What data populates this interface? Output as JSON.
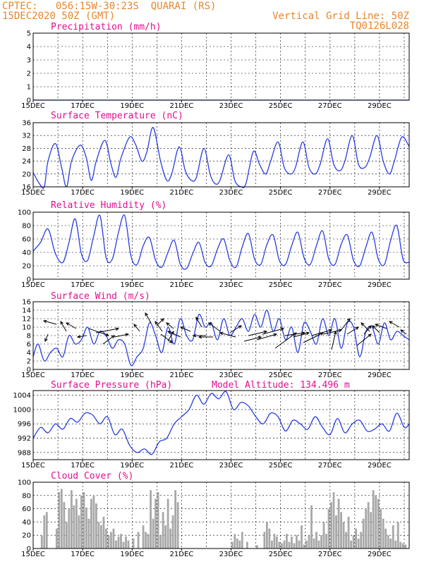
{
  "header": {
    "left_line1": "CPTEC:   056:15W-30:23S  QUARAI (RS)",
    "left_line2": "15DEC2020 50Z (GMT)",
    "right_line1": "Vertical Grid Line: 50Z",
    "right_line2": "TQ0126L028"
  },
  "colors": {
    "header": "#e8862a",
    "titles": "#e0108f",
    "series": "#2a3ee0",
    "bars": "#a8a8a8",
    "wind_arrows": "#000000"
  },
  "chart_data": [
    {
      "type": "line",
      "title": "Precipitation (mm/h)",
      "ylim": [
        0,
        5
      ],
      "yticks": [
        0,
        1,
        2,
        3,
        4,
        5
      ],
      "xticks": [
        "15DEC",
        "17DEC",
        "19DEC",
        "21DEC",
        "23DEC",
        "25DEC",
        "27DEC",
        "29DEC"
      ],
      "x_day_range": [
        15.0,
        30.2
      ],
      "x": [
        15.0,
        30.2
      ],
      "y": [
        0,
        0
      ]
    },
    {
      "type": "line",
      "title": "Surface Temperature (nC)",
      "ylim": [
        16,
        36
      ],
      "yticks": [
        16,
        20,
        24,
        28,
        32,
        36
      ],
      "xticks": [
        "15DEC",
        "17DEC",
        "19DEC",
        "21DEC",
        "23DEC",
        "25DEC",
        "27DEC",
        "29DEC"
      ],
      "x_day_range": [
        15.0,
        30.2
      ],
      "x": [
        15.0,
        15.25,
        15.45,
        15.6,
        15.9,
        16.15,
        16.35,
        16.55,
        16.9,
        17.15,
        17.35,
        17.55,
        17.9,
        18.15,
        18.35,
        18.55,
        18.9,
        19.15,
        19.4,
        19.6,
        19.85,
        20.15,
        20.4,
        20.6,
        20.9,
        21.15,
        21.4,
        21.6,
        21.9,
        22.15,
        22.35,
        22.55,
        22.9,
        23.15,
        23.4,
        23.6,
        23.9,
        24.15,
        24.4,
        24.6,
        24.9,
        25.15,
        25.4,
        25.6,
        25.9,
        26.15,
        26.4,
        26.6,
        26.9,
        27.15,
        27.4,
        27.6,
        27.9,
        28.15,
        28.4,
        28.6,
        28.9,
        29.15,
        29.4,
        29.6,
        29.9,
        30.2
      ],
      "y": [
        20.5,
        17,
        16,
        24,
        29.5,
        22,
        16,
        24,
        29,
        25,
        18,
        24,
        30.5,
        23,
        19,
        25,
        31.5,
        29,
        24,
        27,
        34.5,
        24,
        18,
        20,
        28.5,
        21,
        18,
        19,
        28,
        20,
        17,
        18,
        26,
        18,
        16,
        17,
        27,
        23,
        20,
        24,
        30,
        22,
        20,
        22,
        30,
        22,
        20,
        23,
        31,
        23,
        21,
        24,
        32,
        23,
        22,
        25,
        32,
        24,
        20,
        24,
        31.5,
        28.5
      ]
    },
    {
      "type": "line",
      "title": "Relative Humidity (%)",
      "ylim": [
        0,
        100
      ],
      "yticks": [
        0,
        20,
        40,
        60,
        80,
        100
      ],
      "xticks": [
        "15DEC",
        "17DEC",
        "19DEC",
        "21DEC",
        "23DEC",
        "25DEC",
        "27DEC",
        "29DEC"
      ],
      "x_day_range": [
        15.0,
        30.2
      ],
      "x": [
        15.0,
        15.3,
        15.6,
        15.9,
        16.2,
        16.45,
        16.7,
        16.95,
        17.2,
        17.45,
        17.7,
        17.95,
        18.2,
        18.45,
        18.7,
        18.95,
        19.2,
        19.45,
        19.7,
        19.95,
        20.2,
        20.45,
        20.7,
        20.95,
        21.2,
        21.45,
        21.7,
        21.95,
        22.2,
        22.45,
        22.7,
        22.95,
        23.2,
        23.45,
        23.7,
        23.95,
        24.2,
        24.45,
        24.7,
        24.95,
        25.2,
        25.45,
        25.7,
        25.95,
        26.2,
        26.45,
        26.7,
        26.95,
        27.2,
        27.45,
        27.7,
        27.95,
        28.2,
        28.45,
        28.7,
        28.95,
        29.2,
        29.45,
        29.7,
        29.95,
        30.2
      ],
      "y": [
        42,
        55,
        75,
        38,
        25,
        55,
        90,
        38,
        28,
        65,
        95,
        32,
        30,
        70,
        95,
        35,
        22,
        50,
        62,
        28,
        18,
        40,
        58,
        22,
        16,
        38,
        55,
        25,
        20,
        45,
        60,
        28,
        18,
        48,
        68,
        30,
        22,
        52,
        66,
        28,
        22,
        50,
        70,
        32,
        22,
        50,
        72,
        30,
        22,
        52,
        66,
        28,
        20,
        48,
        70,
        30,
        22,
        58,
        80,
        30,
        25
      ]
    },
    {
      "type": "line",
      "title": "Surface Wind (m/s)",
      "ylim": [
        0,
        16
      ],
      "yticks": [
        0,
        2,
        4,
        6,
        8,
        10,
        12,
        14,
        16
      ],
      "xticks": [
        "15DEC",
        "17DEC",
        "19DEC",
        "21DEC",
        "23DEC",
        "25DEC",
        "27DEC",
        "29DEC"
      ],
      "x_day_range": [
        15.0,
        30.2
      ],
      "x": [
        15.0,
        15.2,
        15.45,
        15.7,
        15.95,
        16.2,
        16.45,
        16.7,
        16.95,
        17.2,
        17.45,
        17.7,
        17.95,
        18.2,
        18.45,
        18.7,
        18.95,
        19.2,
        19.45,
        19.7,
        19.95,
        20.2,
        20.45,
        20.7,
        20.95,
        21.2,
        21.45,
        21.7,
        21.95,
        22.2,
        22.45,
        22.7,
        22.95,
        23.2,
        23.45,
        23.7,
        23.95,
        24.2,
        24.45,
        24.7,
        24.95,
        25.2,
        25.45,
        25.7,
        25.95,
        26.2,
        26.45,
        26.7,
        26.95,
        27.2,
        27.45,
        27.7,
        27.95,
        28.2,
        28.45,
        28.7,
        28.95,
        29.2,
        29.45,
        29.7,
        29.95,
        30.2
      ],
      "y": [
        3,
        6,
        2,
        4,
        5,
        3,
        8,
        6,
        7,
        10,
        6,
        9,
        8,
        5,
        7,
        6,
        1,
        3,
        5,
        11,
        8,
        4,
        10,
        6,
        12,
        8,
        7,
        13,
        10,
        11,
        7,
        12,
        8,
        10,
        12,
        9,
        13,
        10,
        14,
        9,
        12,
        7,
        10,
        4,
        11,
        9,
        6,
        12,
        8,
        12,
        5,
        11,
        10,
        3,
        9,
        10,
        6,
        11,
        7,
        9,
        8,
        7
      ]
    },
    {
      "type": "line",
      "title": "Surface Pressure (hPa)",
      "annotation": "Model Altitude: 134.496 m",
      "ylim": [
        986,
        1005.3
      ],
      "yticks": [
        988,
        992,
        996,
        1000,
        1004
      ],
      "xticks": [
        "15DEC",
        "17DEC",
        "19DEC",
        "21DEC",
        "23DEC",
        "25DEC",
        "27DEC",
        "29DEC"
      ],
      "x_day_range": [
        15.0,
        30.2
      ],
      "x": [
        15.0,
        15.3,
        15.6,
        15.9,
        16.2,
        16.5,
        16.8,
        17.1,
        17.4,
        17.7,
        18.0,
        18.3,
        18.6,
        18.9,
        19.2,
        19.5,
        19.8,
        20.1,
        20.4,
        20.7,
        21.0,
        21.3,
        21.6,
        21.9,
        22.2,
        22.5,
        22.8,
        23.1,
        23.4,
        23.7,
        24.0,
        24.3,
        24.6,
        24.9,
        25.2,
        25.5,
        25.8,
        26.1,
        26.4,
        26.7,
        27.0,
        27.3,
        27.6,
        27.9,
        28.2,
        28.5,
        28.8,
        29.1,
        29.4,
        29.7,
        30.0,
        30.2
      ],
      "y": [
        992,
        995,
        993.5,
        996,
        994.5,
        997.5,
        996.5,
        999,
        998.5,
        996,
        998,
        993,
        994.5,
        990,
        988,
        989,
        987.5,
        991,
        992,
        996,
        998,
        1000,
        1004,
        1001.5,
        1004.5,
        1003,
        1005,
        1000,
        1002,
        1001,
        998,
        996,
        999,
        998,
        994,
        997,
        996,
        994.5,
        998,
        995,
        993,
        997.5,
        993.5,
        996,
        997,
        994,
        994.5,
        996,
        994,
        999,
        995,
        996
      ]
    },
    {
      "type": "bar",
      "title": "Cloud Cover (%)",
      "ylim": [
        0,
        100
      ],
      "yticks": [
        0,
        20,
        40,
        60,
        80,
        100
      ],
      "xticks": [
        "15DEC",
        "17DEC",
        "19DEC",
        "21DEC",
        "23DEC",
        "25DEC",
        "27DEC",
        "29DEC"
      ],
      "x_day_range": [
        15.0,
        30.2
      ],
      "x": [
        15.35,
        15.45,
        15.55,
        15.95,
        16.05,
        16.15,
        16.25,
        16.35,
        16.45,
        16.55,
        16.65,
        16.75,
        16.85,
        16.95,
        17.05,
        17.15,
        17.25,
        17.35,
        17.45,
        17.55,
        17.65,
        17.75,
        17.85,
        17.95,
        18.05,
        18.15,
        18.25,
        18.35,
        18.45,
        18.55,
        18.65,
        18.75,
        18.85,
        19.05,
        19.25,
        19.45,
        19.55,
        19.65,
        19.75,
        19.85,
        19.95,
        20.05,
        20.15,
        20.25,
        20.35,
        20.45,
        20.55,
        20.65,
        20.75,
        20.85,
        23.05,
        23.15,
        23.25,
        23.35,
        23.45,
        23.65,
        24.05,
        24.35,
        24.45,
        24.55,
        24.65,
        24.75,
        24.85,
        24.95,
        25.05,
        25.15,
        25.25,
        25.35,
        25.45,
        25.55,
        25.65,
        25.75,
        25.85,
        25.95,
        26.05,
        26.15,
        26.25,
        26.35,
        26.45,
        26.55,
        26.65,
        26.75,
        26.85,
        26.95,
        27.05,
        27.15,
        27.25,
        27.35,
        27.45,
        27.55,
        27.65,
        27.75,
        27.85,
        27.95,
        28.05,
        28.15,
        28.25,
        28.35,
        28.45,
        28.55,
        28.65,
        28.75,
        28.85,
        28.95,
        29.05,
        29.15,
        29.25,
        29.35,
        29.45,
        29.55,
        29.65,
        29.75,
        29.85,
        29.95,
        30.05
      ],
      "values": [
        20,
        50,
        55,
        30,
        85,
        90,
        70,
        40,
        60,
        88,
        65,
        75,
        50,
        80,
        85,
        62,
        45,
        75,
        80,
        68,
        40,
        35,
        48,
        30,
        20,
        25,
        30,
        12,
        18,
        22,
        10,
        18,
        12,
        15,
        25,
        35,
        25,
        22,
        88,
        45,
        75,
        85,
        20,
        55,
        35,
        75,
        30,
        50,
        88,
        70,
        10,
        22,
        15,
        12,
        25,
        10,
        5,
        25,
        40,
        30,
        12,
        22,
        18,
        10,
        8,
        12,
        22,
        10,
        18,
        8,
        20,
        12,
        35,
        6,
        12,
        20,
        65,
        15,
        25,
        12,
        20,
        40,
        22,
        60,
        70,
        85,
        50,
        75,
        55,
        40,
        25,
        48,
        12,
        20,
        30,
        15,
        25,
        45,
        60,
        70,
        55,
        88,
        80,
        75,
        60,
        45,
        30,
        20,
        15,
        35,
        12,
        40,
        10,
        8,
        6
      ]
    }
  ]
}
